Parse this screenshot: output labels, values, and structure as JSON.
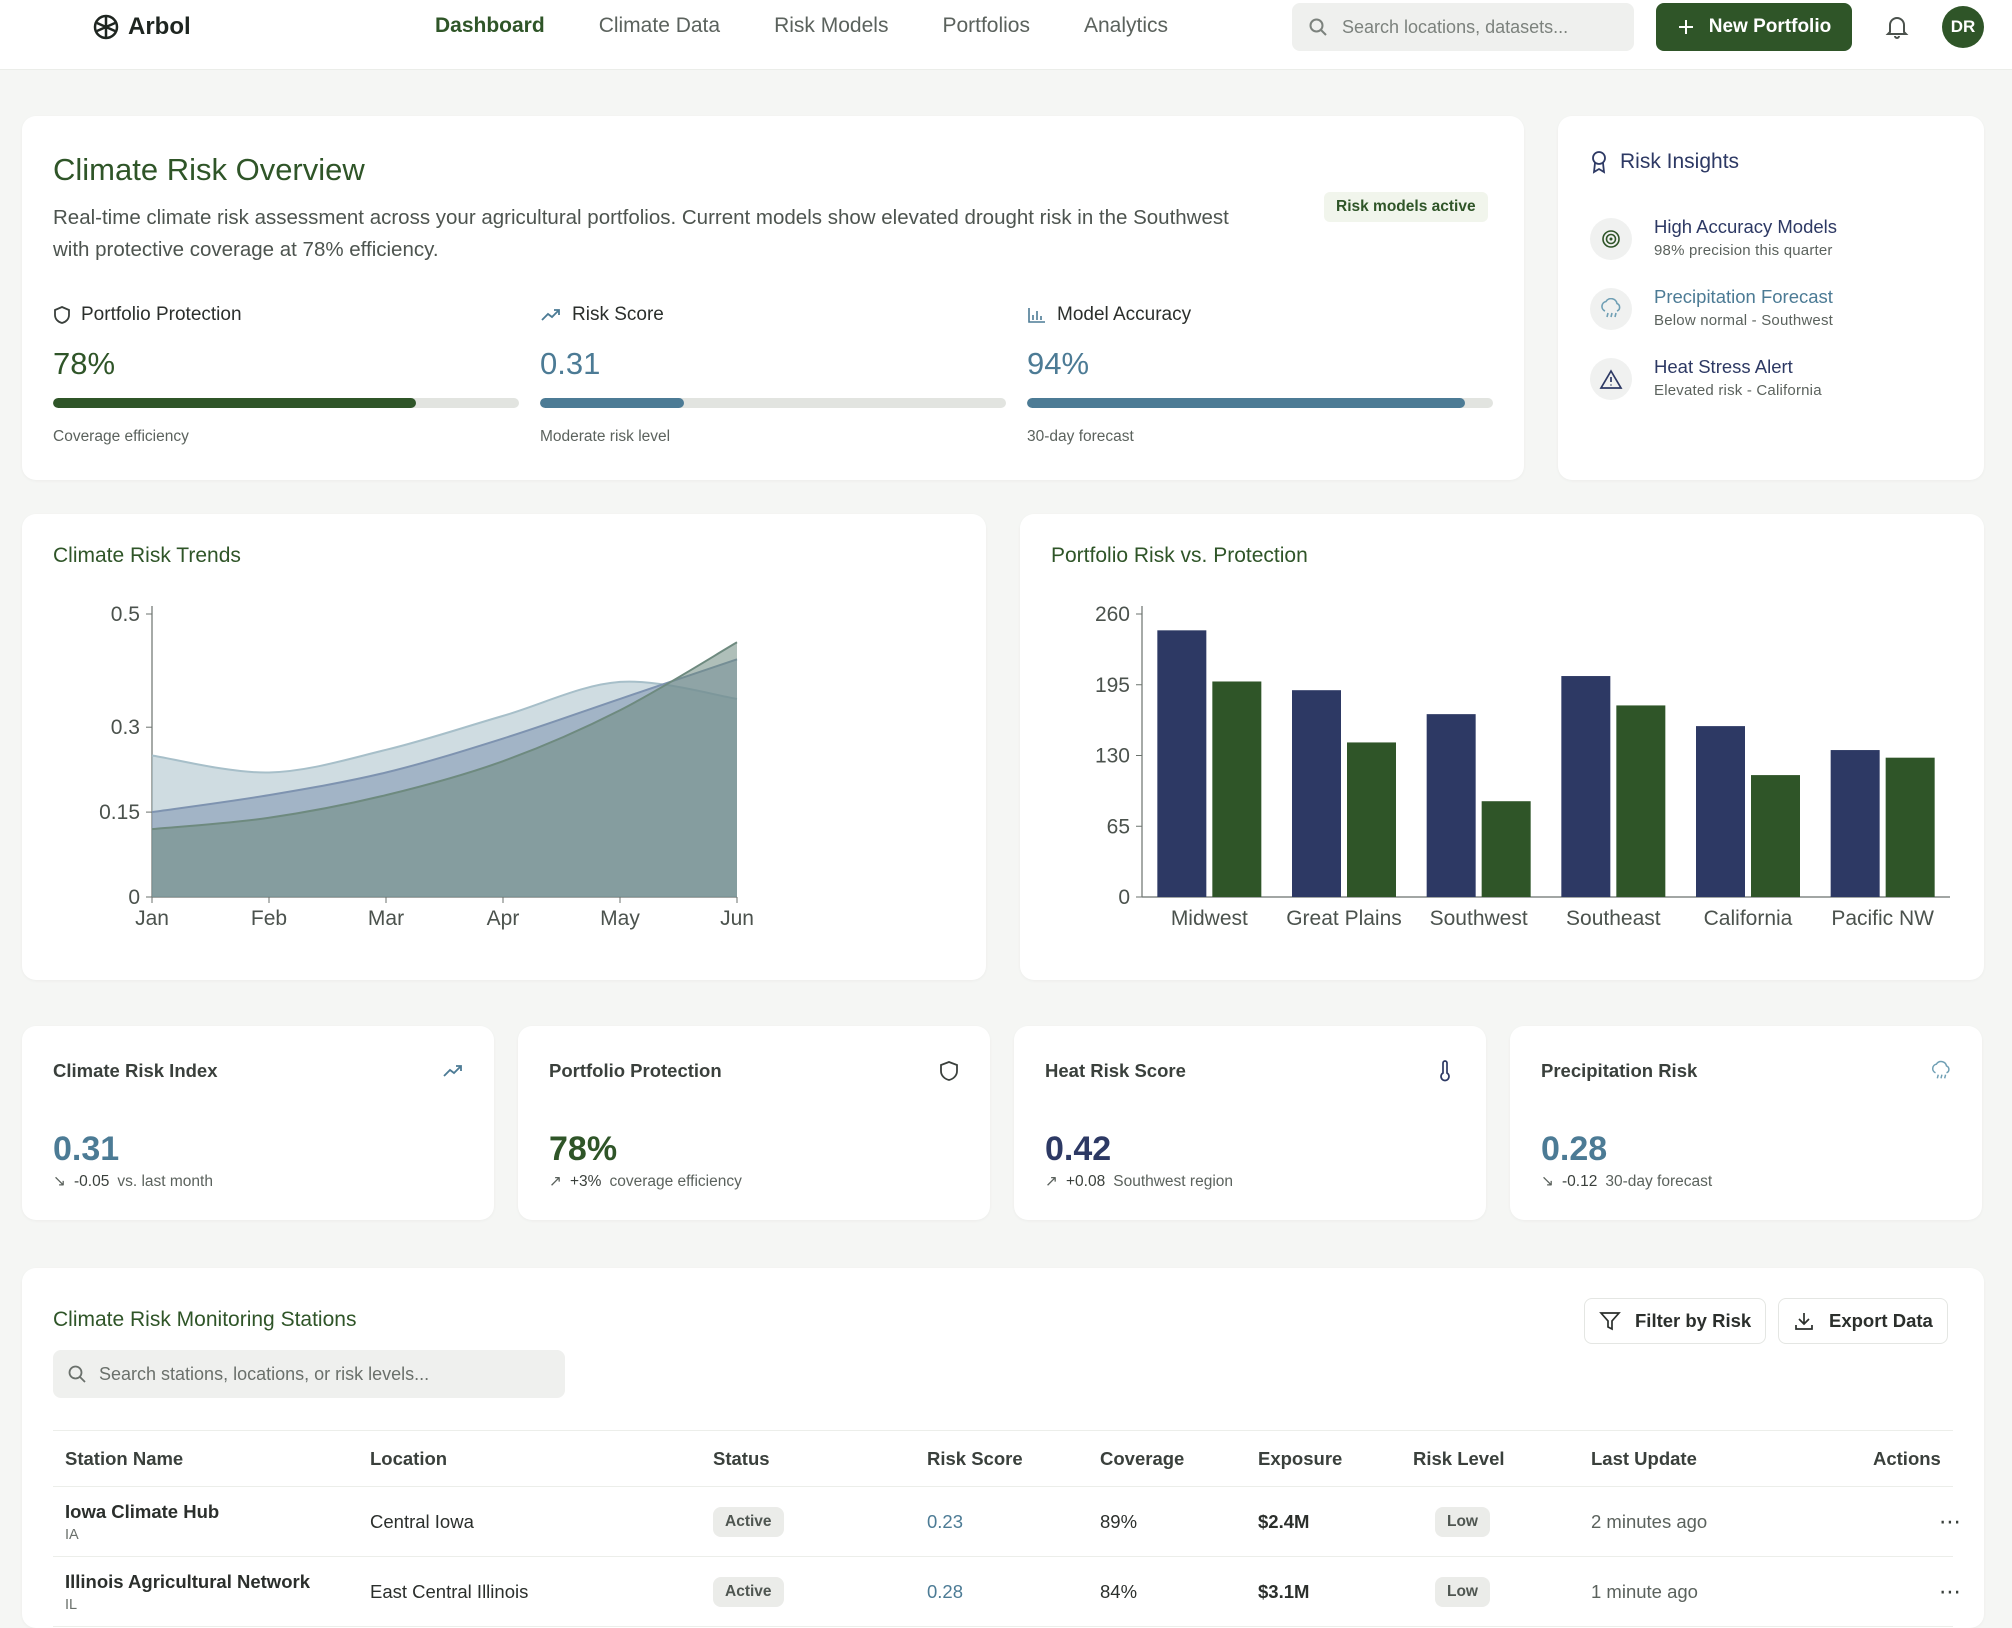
{
  "nav": {
    "brand": "Arbol",
    "links": [
      "Dashboard",
      "Climate Data",
      "Risk Models",
      "Portfolios",
      "Analytics"
    ],
    "search_placeholder": "Search locations, datasets...",
    "new_portfolio_label": "New Portfolio",
    "avatar_initials": "DR"
  },
  "overview": {
    "title": "Climate Risk Overview",
    "description": "Real-time climate risk assessment across your agricultural portfolios. Current models show elevated drought risk in the Southwest with protective coverage at 78% efficiency.",
    "badge": "Risk models active",
    "metrics": [
      {
        "label": "Portfolio Protection",
        "value": "78%",
        "fill": 0.78,
        "sub": "Coverage efficiency",
        "color": "#2f5528",
        "icon": "shield-icon"
      },
      {
        "label": "Risk Score",
        "value": "0.31",
        "fill": 0.31,
        "sub": "Moderate risk level",
        "color": "#4c7b95",
        "icon": "trending-up-icon"
      },
      {
        "label": "Model Accuracy",
        "value": "94%",
        "fill": 0.94,
        "sub": "30-day forecast",
        "color": "#4c7b95",
        "icon": "bar-chart-icon"
      }
    ]
  },
  "insights": {
    "title": "Risk Insights",
    "items": [
      {
        "name": "High Accuracy Models",
        "sub": "98% precision this quarter",
        "icon": "target-icon"
      },
      {
        "name": "Precipitation Forecast",
        "sub": "Below normal - Southwest",
        "icon": "cloud-rain-icon"
      },
      {
        "name": "Heat Stress Alert",
        "sub": "Elevated risk - California",
        "icon": "alert-triangle-icon"
      }
    ]
  },
  "trends_title": "Climate Risk Trends",
  "bars_title": "Portfolio Risk vs. Protection",
  "chart_data": [
    {
      "type": "area",
      "title": "Climate Risk Trends",
      "x": [
        "Jan",
        "Feb",
        "Mar",
        "Apr",
        "May",
        "Jun"
      ],
      "ylim": [
        0,
        0.5
      ],
      "y_ticks": [
        0,
        0.15,
        0.3,
        0.5
      ],
      "series": [
        {
          "values": [
            0.25,
            0.22,
            0.26,
            0.32,
            0.38,
            0.35
          ],
          "color": "#a7bfc9"
        },
        {
          "values": [
            0.15,
            0.18,
            0.22,
            0.28,
            0.35,
            0.42
          ],
          "color": "#7e93b0"
        },
        {
          "values": [
            0.12,
            0.14,
            0.18,
            0.24,
            0.33,
            0.45
          ],
          "color": "#6e8a7f"
        }
      ]
    },
    {
      "type": "bar",
      "title": "Portfolio Risk vs. Protection",
      "categories": [
        "Midwest",
        "Great Plains",
        "Southwest",
        "Southeast",
        "California",
        "Pacific NW"
      ],
      "ylim": [
        0,
        260
      ],
      "y_ticks": [
        0,
        65,
        130,
        195,
        260
      ],
      "series": [
        {
          "values": [
            245,
            190,
            168,
            203,
            157,
            135
          ],
          "color": "#2d3964"
        },
        {
          "values": [
            198,
            142,
            88,
            176,
            112,
            128
          ],
          "color": "#2f5528"
        }
      ]
    }
  ],
  "stats": [
    {
      "label": "Climate Risk Index",
      "value": "0.31",
      "delta": "-0.05",
      "note": "vs. last month",
      "dir": "down",
      "color": "#4c7b95",
      "icon": "trending-up-icon"
    },
    {
      "label": "Portfolio Protection",
      "value": "78%",
      "delta": "+3%",
      "note": "coverage efficiency",
      "dir": "up",
      "color": "#2f5528",
      "icon": "shield-icon"
    },
    {
      "label": "Heat Risk Score",
      "value": "0.42",
      "delta": "+0.08",
      "note": "Southwest region",
      "dir": "up",
      "color": "#2d3964",
      "icon": "thermometer-icon"
    },
    {
      "label": "Precipitation Risk",
      "value": "0.28",
      "delta": "-0.12",
      "note": "30-day forecast",
      "dir": "down",
      "color": "#4c7b95",
      "icon": "cloud-rain-icon"
    }
  ],
  "stations": {
    "title": "Climate Risk Monitoring Stations",
    "filter_label": "Filter by Risk",
    "export_label": "Export Data",
    "search_placeholder": "Search stations, locations, or risk levels...",
    "columns": [
      "Station Name",
      "Location",
      "Status",
      "Risk Score",
      "Coverage",
      "Exposure",
      "Risk Level",
      "Last Update",
      "Actions"
    ],
    "rows": [
      {
        "name": "Iowa Climate Hub",
        "state": "IA",
        "location": "Central Iowa",
        "status": "Active",
        "risk": "0.23",
        "coverage": "89%",
        "exposure": "$2.4M",
        "level": "Low",
        "updated": "2 minutes ago"
      },
      {
        "name": "Illinois Agricultural Network",
        "state": "IL",
        "location": "East Central Illinois",
        "status": "Active",
        "risk": "0.28",
        "coverage": "84%",
        "exposure": "$3.1M",
        "level": "Low",
        "updated": "1 minute ago"
      }
    ]
  }
}
